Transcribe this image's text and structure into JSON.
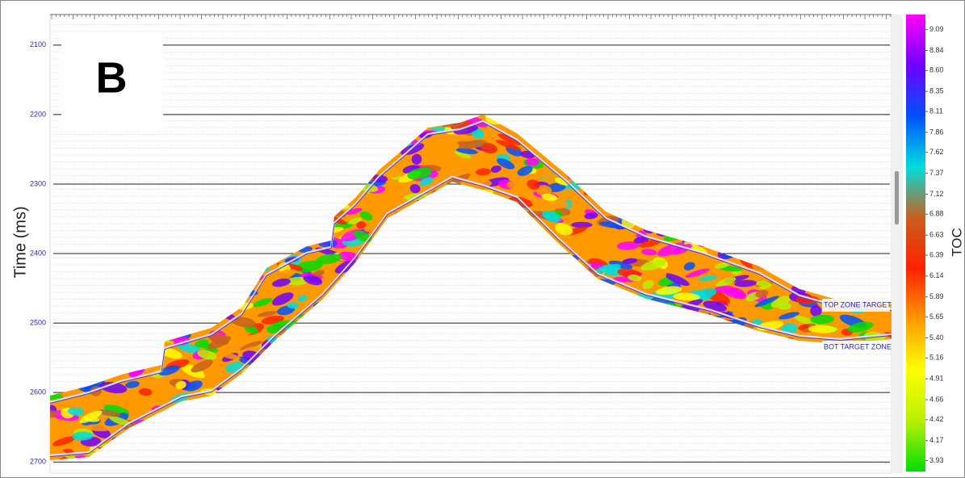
{
  "chart_data": {
    "type": "seismic",
    "panel_label": "B",
    "y_label": "Time (ms)",
    "ylim": [
      2056,
      2716
    ],
    "yticks": [
      2100,
      2200,
      2300,
      2400,
      2500,
      2600,
      2700
    ],
    "annotations": [
      "TOP ZONE TARGET",
      "BOT TARGET ZONE"
    ],
    "colorbar": {
      "label": "TOC",
      "lim": [
        3.8,
        9.27
      ],
      "colors": [
        "#00dd00",
        "#b8f000",
        "#ffff00",
        "#ff9900",
        "#ff2200",
        "#c8601e",
        "#00dddd",
        "#0050ff",
        "#7000ff",
        "#ff00ff"
      ],
      "ticks": [
        3.93,
        4.17,
        4.42,
        4.66,
        4.91,
        5.16,
        {
          "value": 5.4,
          "label": "5.40"
        },
        5.65,
        5.89,
        6.14,
        6.39,
        6.63,
        6.88,
        7.12,
        7.37,
        7.62,
        7.86,
        8.11,
        8.35,
        {
          "value": 8.6,
          "label": "8.60"
        },
        8.84,
        9.09
      ]
    }
  }
}
